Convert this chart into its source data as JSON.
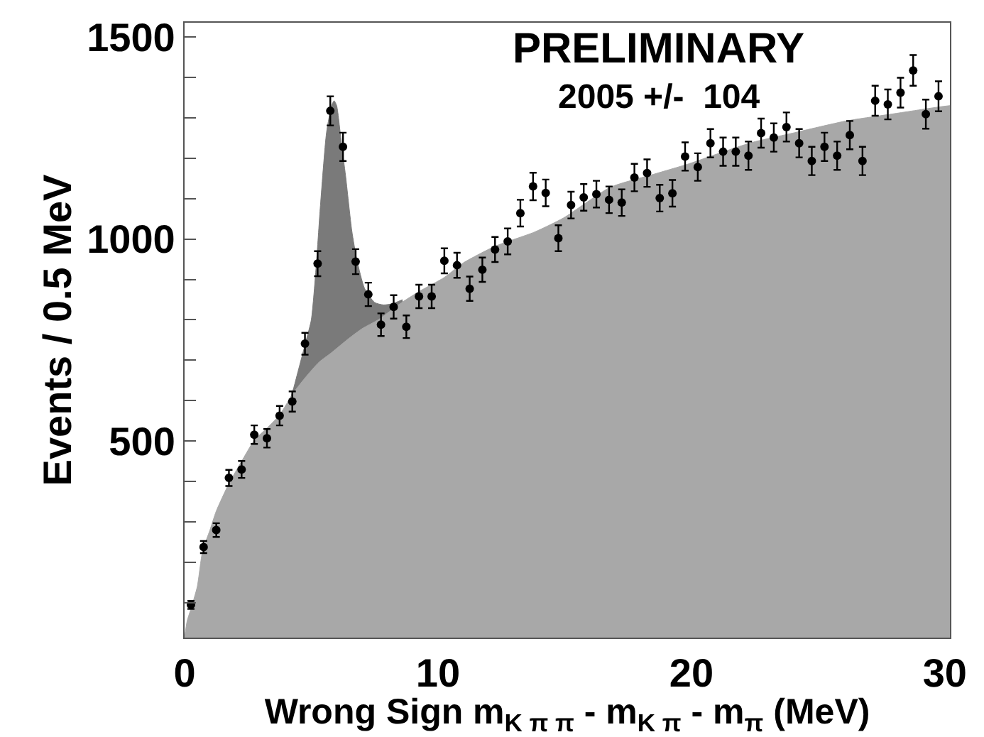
{
  "chart_data": {
    "type": "scatter",
    "xlabel": "Wrong Sign m$_{K π π}$ - m$_{K π}$ - m$_{π}$ (MeV)",
    "ylabel": "Events / 0.5 MeV",
    "annotations": [
      "PRELIMINARY",
      "2005 +/-  104"
    ],
    "xlim": [
      0,
      30.2
    ],
    "ylim": [
      14,
      1535
    ],
    "xticks": [
      0,
      10,
      20,
      30
    ],
    "yticks": [
      {
        "value": 100,
        "label": null
      },
      {
        "value": 200,
        "label": null
      },
      {
        "value": 300,
        "label": null
      },
      {
        "value": 400,
        "label": null
      },
      500,
      {
        "value": 600,
        "label": null
      },
      {
        "value": 700,
        "label": null
      },
      {
        "value": 800,
        "label": null
      },
      {
        "value": 900,
        "label": null
      },
      1000,
      {
        "value": 1100,
        "label": null
      },
      {
        "value": 1200,
        "label": null
      },
      {
        "value": 1300,
        "label": null
      },
      {
        "value": 1400,
        "label": null
      },
      1500
    ],
    "series": [
      {
        "type": "area",
        "color": "#7a7a7a",
        "x": [
          3.8,
          4.2,
          4.5,
          4.8,
          5.0,
          5.2,
          5.35,
          5.6,
          5.8,
          5.9,
          6.0,
          6.2,
          6.35,
          6.6,
          6.8,
          7.1,
          7.5,
          7.85,
          8.2,
          8.6
        ],
        "values": [
          560,
          610,
          678,
          750,
          800,
          939,
          1075,
          1263,
          1330,
          1342,
          1330,
          1230,
          1158,
          1020,
          948,
          878,
          843,
          837,
          840,
          850
        ]
      },
      {
        "type": "area",
        "color": "#a8a8a8",
        "x": [
          0,
          0.1,
          0.25,
          0.5,
          0.71,
          1.0,
          1.25,
          1.75,
          2.25,
          2.75,
          3.25,
          3.75,
          4.3,
          4.8,
          5.3,
          5.8,
          6.5,
          7.0,
          7.66,
          8.5,
          9.25,
          10.25,
          11.0,
          12.25,
          13.8,
          14.95,
          16.8,
          18.5,
          19.9,
          21.0,
          22.4,
          24.0,
          26.1,
          28.0,
          29.8,
          30.2
        ],
        "values": [
          14,
          55,
          85,
          140,
          228,
          280,
          327,
          395,
          450,
          502,
          532,
          565,
          620,
          660,
          695,
          719,
          755,
          778,
          801,
          840,
          870,
          905,
          941,
          982,
          1017,
          1052,
          1128,
          1160,
          1186,
          1210,
          1239,
          1262,
          1292,
          1310,
          1327,
          1330
        ]
      },
      {
        "color": "#000000",
        "marker": "circle",
        "x": [
          0.25,
          0.75,
          1.25,
          1.75,
          2.25,
          2.75,
          3.25,
          3.75,
          4.25,
          4.75,
          5.25,
          5.75,
          6.25,
          6.75,
          7.25,
          7.75,
          8.25,
          8.75,
          9.25,
          9.75,
          10.25,
          10.75,
          11.25,
          11.75,
          12.25,
          12.75,
          13.25,
          13.75,
          14.25,
          14.75,
          15.25,
          15.75,
          16.25,
          16.75,
          17.25,
          17.75,
          18.25,
          18.75,
          19.25,
          19.75,
          20.25,
          20.75,
          21.25,
          21.75,
          22.25,
          22.75,
          23.25,
          23.75,
          24.25,
          24.75,
          25.25,
          25.75,
          26.25,
          26.75,
          27.25,
          27.75,
          28.25,
          28.75,
          29.25,
          29.75
        ],
        "values": [
          95,
          238,
          280,
          409,
          430,
          516,
          507,
          563,
          598,
          741,
          939,
          1317,
          1228,
          944,
          863,
          788,
          832,
          783,
          858,
          858,
          946,
          935,
          877,
          924,
          974,
          994,
          1064,
          1130,
          1114,
          1002,
          1084,
          1103,
          1111,
          1097,
          1090,
          1152,
          1163,
          1101,
          1113,
          1204,
          1178,
          1237,
          1216,
          1216,
          1206,
          1262,
          1251,
          1277,
          1237,
          1193,
          1228,
          1206,
          1257,
          1193,
          1342,
          1333,
          1362,
          1417,
          1309,
          1353
        ],
        "errors": [
          10,
          15,
          17,
          20,
          21,
          23,
          23,
          24,
          25,
          27,
          31,
          36,
          35,
          31,
          29,
          28,
          29,
          28,
          29,
          29,
          31,
          31,
          30,
          30,
          31,
          32,
          33,
          34,
          33,
          32,
          33,
          33,
          33,
          33,
          33,
          34,
          34,
          33,
          33,
          35,
          34,
          35,
          35,
          35,
          35,
          36,
          35,
          36,
          35,
          35,
          35,
          35,
          35,
          35,
          37,
          37,
          37,
          38,
          36,
          37
        ]
      }
    ]
  }
}
